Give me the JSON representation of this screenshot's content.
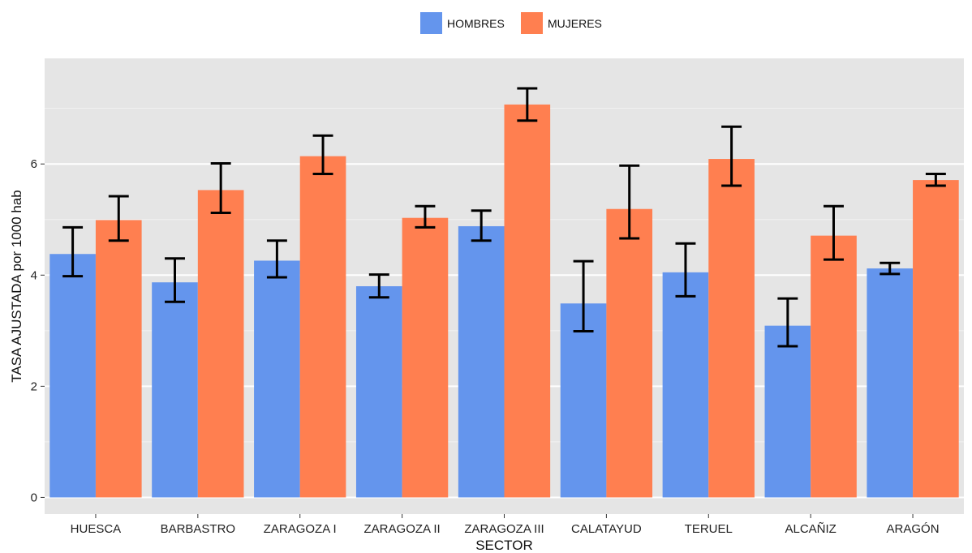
{
  "chart_data": {
    "type": "bar",
    "title": "",
    "xlabel": "SECTOR",
    "ylabel": "TASA AJUSTADA por 1000 hab",
    "ylim": [
      -0.3,
      7.9
    ],
    "yticks": [
      0,
      2,
      4,
      6
    ],
    "grid": true,
    "legend_position": "top",
    "categories": [
      "HUESCA",
      "BARBASTRO",
      "ZARAGOZA I",
      "ZARAGOZA II",
      "ZARAGOZA III",
      "CALATAYUD",
      "TERUEL",
      "ALCAÑIZ",
      "ARAGÓN"
    ],
    "series": [
      {
        "name": "HOMBRES",
        "color": "#6495ED",
        "values": [
          4.38,
          3.87,
          4.26,
          3.8,
          4.88,
          3.49,
          4.05,
          3.09,
          4.12
        ],
        "error_low": [
          3.98,
          3.52,
          3.96,
          3.6,
          4.62,
          2.99,
          3.62,
          2.72,
          4.02
        ],
        "error_high": [
          4.86,
          4.3,
          4.62,
          4.01,
          5.16,
          4.25,
          4.57,
          3.58,
          4.22
        ]
      },
      {
        "name": "MUJERES",
        "color": "#FF7F50",
        "values": [
          4.99,
          5.53,
          6.14,
          5.03,
          7.07,
          5.19,
          6.09,
          4.71,
          5.71
        ],
        "error_low": [
          4.62,
          5.12,
          5.82,
          4.86,
          6.78,
          4.66,
          5.61,
          4.28,
          5.61
        ],
        "error_high": [
          5.42,
          6.01,
          6.51,
          5.24,
          7.36,
          5.97,
          6.67,
          5.24,
          5.82
        ]
      }
    ]
  }
}
